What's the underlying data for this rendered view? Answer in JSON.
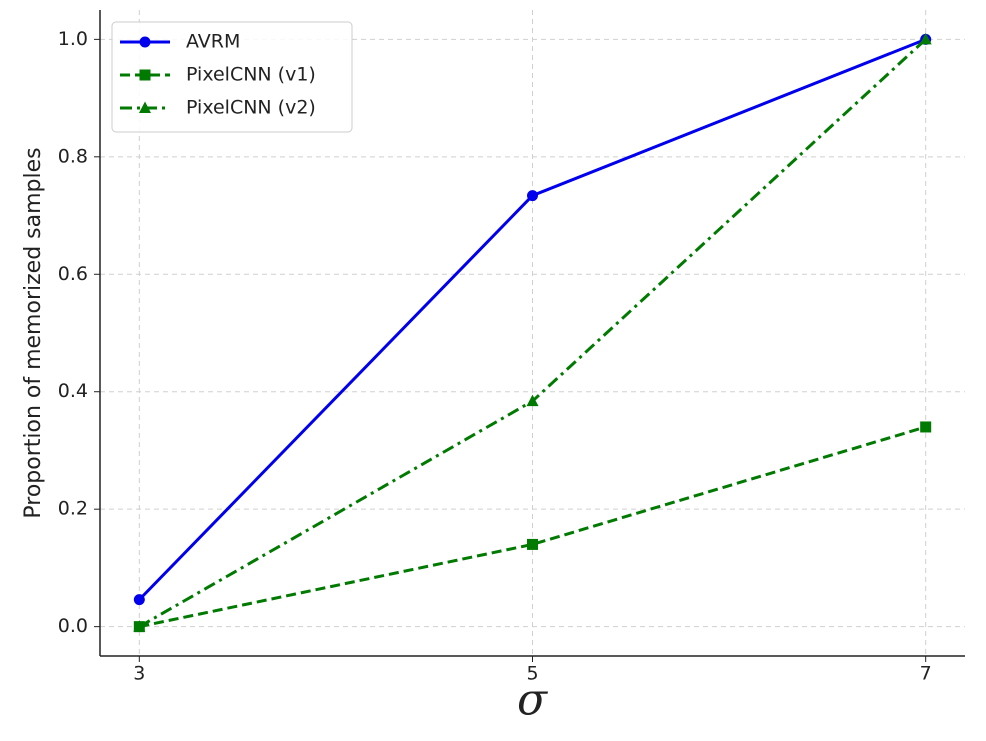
{
  "chart_data": {
    "type": "line",
    "xlabel": "σ",
    "ylabel": "Proportion of memorized samples",
    "x": [
      3,
      5,
      7
    ],
    "series": [
      {
        "name": "AVRM",
        "color": "#0000ee",
        "linestyle": "solid",
        "marker": "circle",
        "values": [
          0.046,
          0.734,
          1.0
        ]
      },
      {
        "name": "PixelCNN (v1)",
        "color": "#007a00",
        "linestyle": "dashed",
        "marker": "square",
        "values": [
          0.0,
          0.14,
          0.34
        ]
      },
      {
        "name": "PixelCNN (v2)",
        "color": "#007a00",
        "linestyle": "dashdot",
        "marker": "triangle",
        "values": [
          0.0,
          0.384,
          1.0
        ]
      }
    ],
    "xlim": [
      2.8,
      7.2
    ],
    "xticks": [
      3,
      5,
      7
    ],
    "ylim": [
      -0.05,
      1.05
    ],
    "yticks": [
      {
        "value": 0,
        "label": "0.0"
      },
      0.2,
      0.4,
      0.6,
      0.8,
      {
        "value": 1,
        "label": "1.0"
      }
    ],
    "grid": true,
    "legend": "upper left"
  }
}
